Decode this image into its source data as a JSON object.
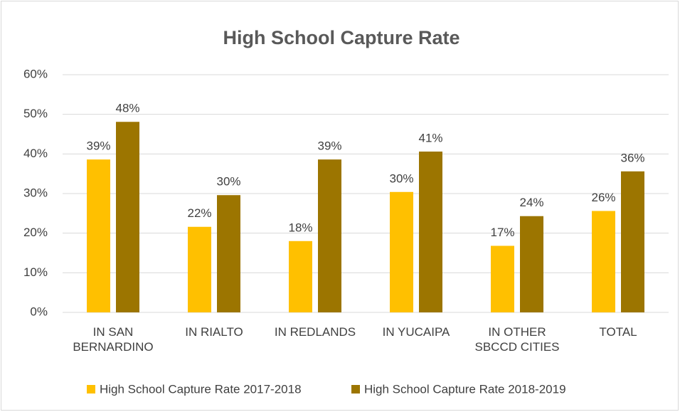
{
  "chart_data": {
    "type": "bar",
    "title": "High School Capture Rate",
    "categories": [
      "IN SAN BERNARDINO",
      "IN RIALTO",
      "IN REDLANDS",
      "IN YUCAIPA",
      "IN OTHER SBCCD CITIES",
      "TOTAL"
    ],
    "series": [
      {
        "name": "High School Capture Rate 2017-2018",
        "color": "#ffc000",
        "values": [
          38.6,
          21.6,
          18.0,
          30.4,
          16.8,
          25.6
        ],
        "value_labels": [
          "39%",
          "22%",
          "18%",
          "30%",
          "17%",
          "26%"
        ]
      },
      {
        "name": "High School Capture Rate 2018-2019",
        "color": "#9c7500",
        "values": [
          48.1,
          29.6,
          38.6,
          40.6,
          24.3,
          35.6
        ],
        "value_labels": [
          "48%",
          "30%",
          "39%",
          "41%",
          "24%",
          "36%"
        ]
      }
    ],
    "ylim": [
      0,
      60
    ],
    "yticks": [
      {
        "value": 0,
        "label": "0%"
      },
      {
        "value": 10,
        "label": "10%"
      },
      {
        "value": 20,
        "label": "20%"
      },
      {
        "value": 30,
        "label": "30%"
      },
      {
        "value": 40,
        "label": "40%"
      },
      {
        "value": 50,
        "label": "50%"
      },
      {
        "value": 60,
        "label": "60%"
      }
    ],
    "grid": true,
    "legend": "bottom"
  }
}
